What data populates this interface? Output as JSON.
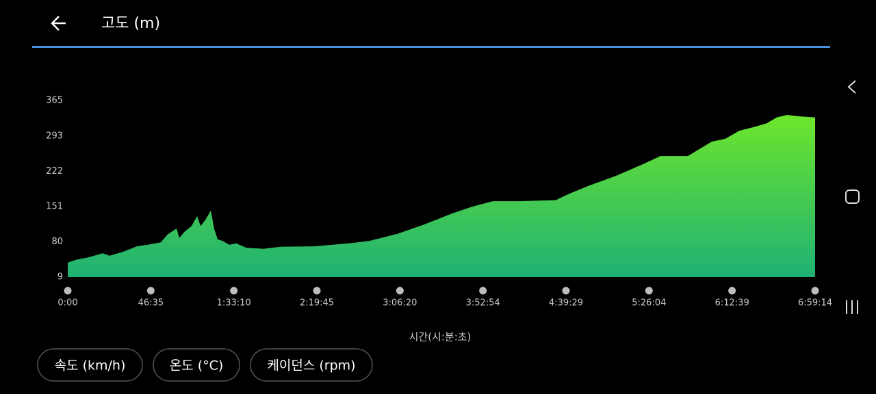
{
  "header": {
    "title": "고도 (m)"
  },
  "chart_data": {
    "type": "area",
    "x_label": "시간(시:분:초)",
    "x": [
      0,
      253,
      714,
      1175,
      1405,
      1866,
      2327,
      2788,
      3133,
      3364,
      3663,
      3755,
      3940,
      4170,
      4354,
      4469,
      4630,
      4815,
      4930,
      5045,
      5206,
      5437,
      5667,
      6012,
      6588,
      7164,
      8316,
      9467,
      10158,
      11080,
      12001,
      12923,
      13614,
      14305,
      15226,
      16424,
      16838,
      17530,
      18451,
      19372,
      19948,
      20869,
      21675,
      22137,
      22597,
      23058,
      23519,
      23864,
      24210,
      24670,
      25154
    ],
    "values": [
      38,
      43.5,
      49,
      57,
      52,
      60,
      71,
      75,
      79,
      95,
      107,
      88,
      101,
      112,
      132,
      112,
      124,
      143,
      106,
      85,
      82,
      74,
      77,
      68,
      66,
      70,
      71,
      77,
      82,
      96,
      115,
      137,
      151,
      162,
      162,
      164,
      176,
      193,
      213,
      237,
      253,
      253,
      282,
      288,
      304,
      311,
      319,
      331,
      336,
      333,
      331
    ],
    "gradient": [
      "#6de52c",
      "#1fb174"
    ],
    "xlim": [
      0,
      25154
    ],
    "xticks": [
      {
        "value": 0,
        "label": "0:00"
      },
      {
        "value": 2795,
        "label": "46:35"
      },
      {
        "value": 5590,
        "label": "1:33:10"
      },
      {
        "value": 8385,
        "label": "2:19:45"
      },
      {
        "value": 11180,
        "label": "3:06:20"
      },
      {
        "value": 13974,
        "label": "3:52:54"
      },
      {
        "value": 16769,
        "label": "4:39:29"
      },
      {
        "value": 19564,
        "label": "5:26:04"
      },
      {
        "value": 22359,
        "label": "6:12:39"
      },
      {
        "value": 25154,
        "label": "6:59:14"
      }
    ],
    "ylim": [
      9,
      365
    ],
    "yticks": [
      9,
      80,
      151,
      222,
      293,
      365
    ]
  },
  "buttons": [
    "속도 (km/h)",
    "온도 (°C)",
    "케이던스 (rpm)"
  ]
}
